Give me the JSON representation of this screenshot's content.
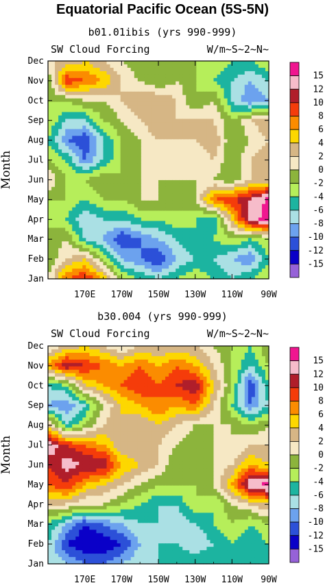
{
  "title": "Equatorial Pacific Ocean (5S-5N)",
  "contour_levels": [
    "15",
    "12",
    "10",
    "8",
    "6",
    "4",
    "2",
    "0",
    "-2",
    "-4",
    "-6",
    "-8",
    "-10",
    "-12",
    "-15"
  ],
  "palette": [
    "#f01690",
    "#f6bcca",
    "#b01e2a",
    "#f53c0a",
    "#fb8c00",
    "#fdd700",
    "#d6b685",
    "#f6e8c4",
    "#8cb43c",
    "#b6ee5a",
    "#1cb4a0",
    "#aae0e4",
    "#6ca2ee",
    "#2c50d8",
    "#0a00c8",
    "#9662d8"
  ],
  "chart_data": [
    {
      "type": "heatmap",
      "title": "b01.01ibis (yrs 990-999)",
      "subtitle_left": "SW Cloud Forcing",
      "subtitle_right": "W/m~S~2~N~",
      "ylabel": "Month",
      "x_ticks": [
        "170E",
        "170W",
        "150W",
        "130W",
        "110W",
        "90W"
      ],
      "y_ticks": [
        "Jan",
        "Feb",
        "Mar",
        "Apr",
        "May",
        "Jun",
        "Jul",
        "Aug",
        "Sep",
        "Oct",
        "Nov",
        "Dec"
      ],
      "x": [
        "150E",
        "160E",
        "170E",
        "180",
        "170W",
        "160W",
        "150W",
        "140W",
        "130W",
        "120W",
        "110W",
        "100W",
        "90W"
      ],
      "y": [
        "Jan",
        "Feb",
        "Mar",
        "Apr",
        "May",
        "Jun",
        "Jul",
        "Aug",
        "Sep",
        "Oct",
        "Nov",
        "Dec"
      ],
      "values": [
        [
          0,
          8,
          10,
          6,
          -2,
          -4,
          -6,
          -4,
          -2,
          -4,
          -6,
          -4,
          -2
        ],
        [
          -2,
          2,
          4,
          -2,
          -8,
          -10,
          -12,
          -8,
          -6,
          -6,
          -8,
          -10,
          -4
        ],
        [
          -2,
          0,
          -6,
          -8,
          -12,
          -10,
          -8,
          -6,
          -4,
          -4,
          -2,
          -4,
          -2
        ],
        [
          -2,
          -4,
          -8,
          -6,
          -6,
          -4,
          -4,
          -2,
          -4,
          -6,
          4,
          14,
          16
        ],
        [
          -2,
          -2,
          -4,
          -2,
          -2,
          0,
          0,
          -2,
          0,
          8,
          10,
          12,
          16
        ],
        [
          2,
          -2,
          -2,
          0,
          -2,
          0,
          0,
          0,
          0,
          0,
          -2,
          2,
          2
        ],
        [
          -2,
          -4,
          -10,
          -6,
          -2,
          0,
          2,
          0,
          0,
          2,
          -2,
          2,
          4
        ],
        [
          -4,
          -10,
          -12,
          -6,
          -2,
          0,
          2,
          2,
          2,
          4,
          -2,
          0,
          2
        ],
        [
          -2,
          -6,
          -6,
          -2,
          0,
          2,
          4,
          2,
          2,
          2,
          -2,
          2,
          4
        ],
        [
          -2,
          -2,
          0,
          0,
          2,
          4,
          4,
          2,
          -2,
          0,
          -6,
          -10,
          -8
        ],
        [
          -2,
          10,
          8,
          6,
          2,
          0,
          -2,
          0,
          -2,
          -4,
          -6,
          -8,
          -6
        ],
        [
          2,
          2,
          4,
          2,
          0,
          -2,
          -2,
          -2,
          -2,
          -2,
          -4,
          -4,
          -2
        ]
      ]
    },
    {
      "type": "heatmap",
      "title": "b30.004 (yrs 990-999)",
      "subtitle_left": "SW Cloud Forcing",
      "subtitle_right": "W/m~S~2~N~",
      "ylabel": "Month",
      "x_ticks": [
        "170E",
        "170W",
        "150W",
        "130W",
        "110W",
        "90W"
      ],
      "y_ticks": [
        "Jan",
        "Feb",
        "Mar",
        "Apr",
        "May",
        "Jun",
        "Jul",
        "Aug",
        "Sep",
        "Oct",
        "Nov",
        "Dec"
      ],
      "x": [
        "150E",
        "160E",
        "170E",
        "180",
        "170W",
        "160W",
        "150W",
        "140W",
        "130W",
        "120W",
        "110W",
        "100W",
        "90W"
      ],
      "y": [
        "Jan",
        "Feb",
        "Mar",
        "Apr",
        "May",
        "Jun",
        "Jul",
        "Aug",
        "Sep",
        "Oct",
        "Nov",
        "Dec"
      ],
      "values": [
        [
          -6,
          -8,
          -10,
          -10,
          -8,
          -6,
          -6,
          -4,
          -4,
          -4,
          -4,
          -6,
          -4
        ],
        [
          -6,
          -12,
          -14,
          -14,
          -12,
          -8,
          -6,
          -6,
          -8,
          -6,
          -4,
          -6,
          -4
        ],
        [
          -4,
          -8,
          -12,
          -10,
          -8,
          -6,
          -6,
          -8,
          -6,
          -4,
          -2,
          -4,
          -2
        ],
        [
          2,
          2,
          0,
          0,
          -2,
          -4,
          -6,
          -6,
          -2,
          -4,
          0,
          2,
          4
        ],
        [
          8,
          10,
          6,
          4,
          2,
          0,
          -2,
          -2,
          -2,
          0,
          6,
          14,
          16
        ],
        [
          10,
          13,
          12,
          12,
          6,
          4,
          2,
          -2,
          -2,
          0,
          2,
          6,
          4
        ],
        [
          14,
          10,
          8,
          6,
          2,
          2,
          2,
          0,
          -2,
          0,
          0,
          2,
          2
        ],
        [
          4,
          -6,
          -2,
          2,
          4,
          2,
          4,
          2,
          0,
          0,
          0,
          -2,
          0
        ],
        [
          -8,
          -10,
          -6,
          0,
          4,
          6,
          8,
          6,
          8,
          2,
          -4,
          -10,
          -6
        ],
        [
          -6,
          -4,
          4,
          6,
          8,
          10,
          8,
          10,
          12,
          4,
          -2,
          -12,
          -4
        ],
        [
          6,
          12,
          10,
          8,
          6,
          8,
          6,
          8,
          6,
          2,
          -2,
          -6,
          -2
        ],
        [
          0,
          2,
          4,
          2,
          0,
          2,
          2,
          2,
          2,
          0,
          -2,
          -4,
          0
        ]
      ]
    }
  ]
}
